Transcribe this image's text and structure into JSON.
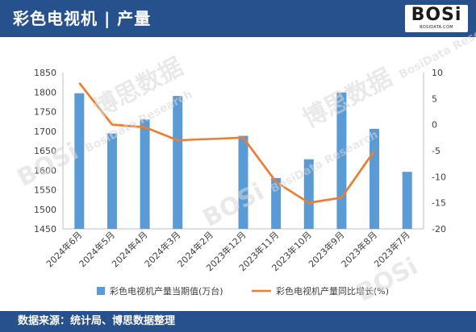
{
  "header": {
    "title": "彩色电视机 | 产量",
    "logo_mark": "BOSi",
    "logo_sub": "BOSIDATA.COM"
  },
  "footer": {
    "source": "数据来源：统计局、博思数据整理"
  },
  "watermark": {
    "mark": "BOSi",
    "cn": "博思数据",
    "en": "BosiData Research"
  },
  "chart_data": {
    "type": "bar+line",
    "categories": [
      "2024年6月",
      "2024年5月",
      "2024年4月",
      "2024年3月",
      "2024年2月",
      "2023年12月",
      "2023年11月",
      "2023年10月",
      "2023年9月",
      "2023年8月",
      "2023年7月"
    ],
    "series": [
      {
        "name": "彩色电视机产量当期值(万台)",
        "type": "bar",
        "axis": "left",
        "color": "#5b9bd5",
        "values": [
          1797,
          1694,
          1730,
          1790,
          null,
          1688,
          1580,
          1628,
          1799,
          1706,
          1596
        ]
      },
      {
        "name": "彩色电视机产量同比增长(%)",
        "type": "line",
        "axis": "right",
        "color": "#ed7d31",
        "values": [
          8,
          0,
          -0.5,
          -3,
          null,
          -2.5,
          -11,
          -15,
          -14,
          -5,
          null
        ]
      }
    ],
    "y_left": {
      "min": 1450,
      "max": 1850,
      "ticks": [
        1450,
        1500,
        1550,
        1600,
        1650,
        1700,
        1750,
        1800,
        1850
      ]
    },
    "y_right": {
      "min": -20,
      "max": 10,
      "ticks": [
        -20,
        -15,
        -10,
        -5,
        0,
        5,
        10
      ]
    },
    "grid": false,
    "legend": "bottom"
  }
}
